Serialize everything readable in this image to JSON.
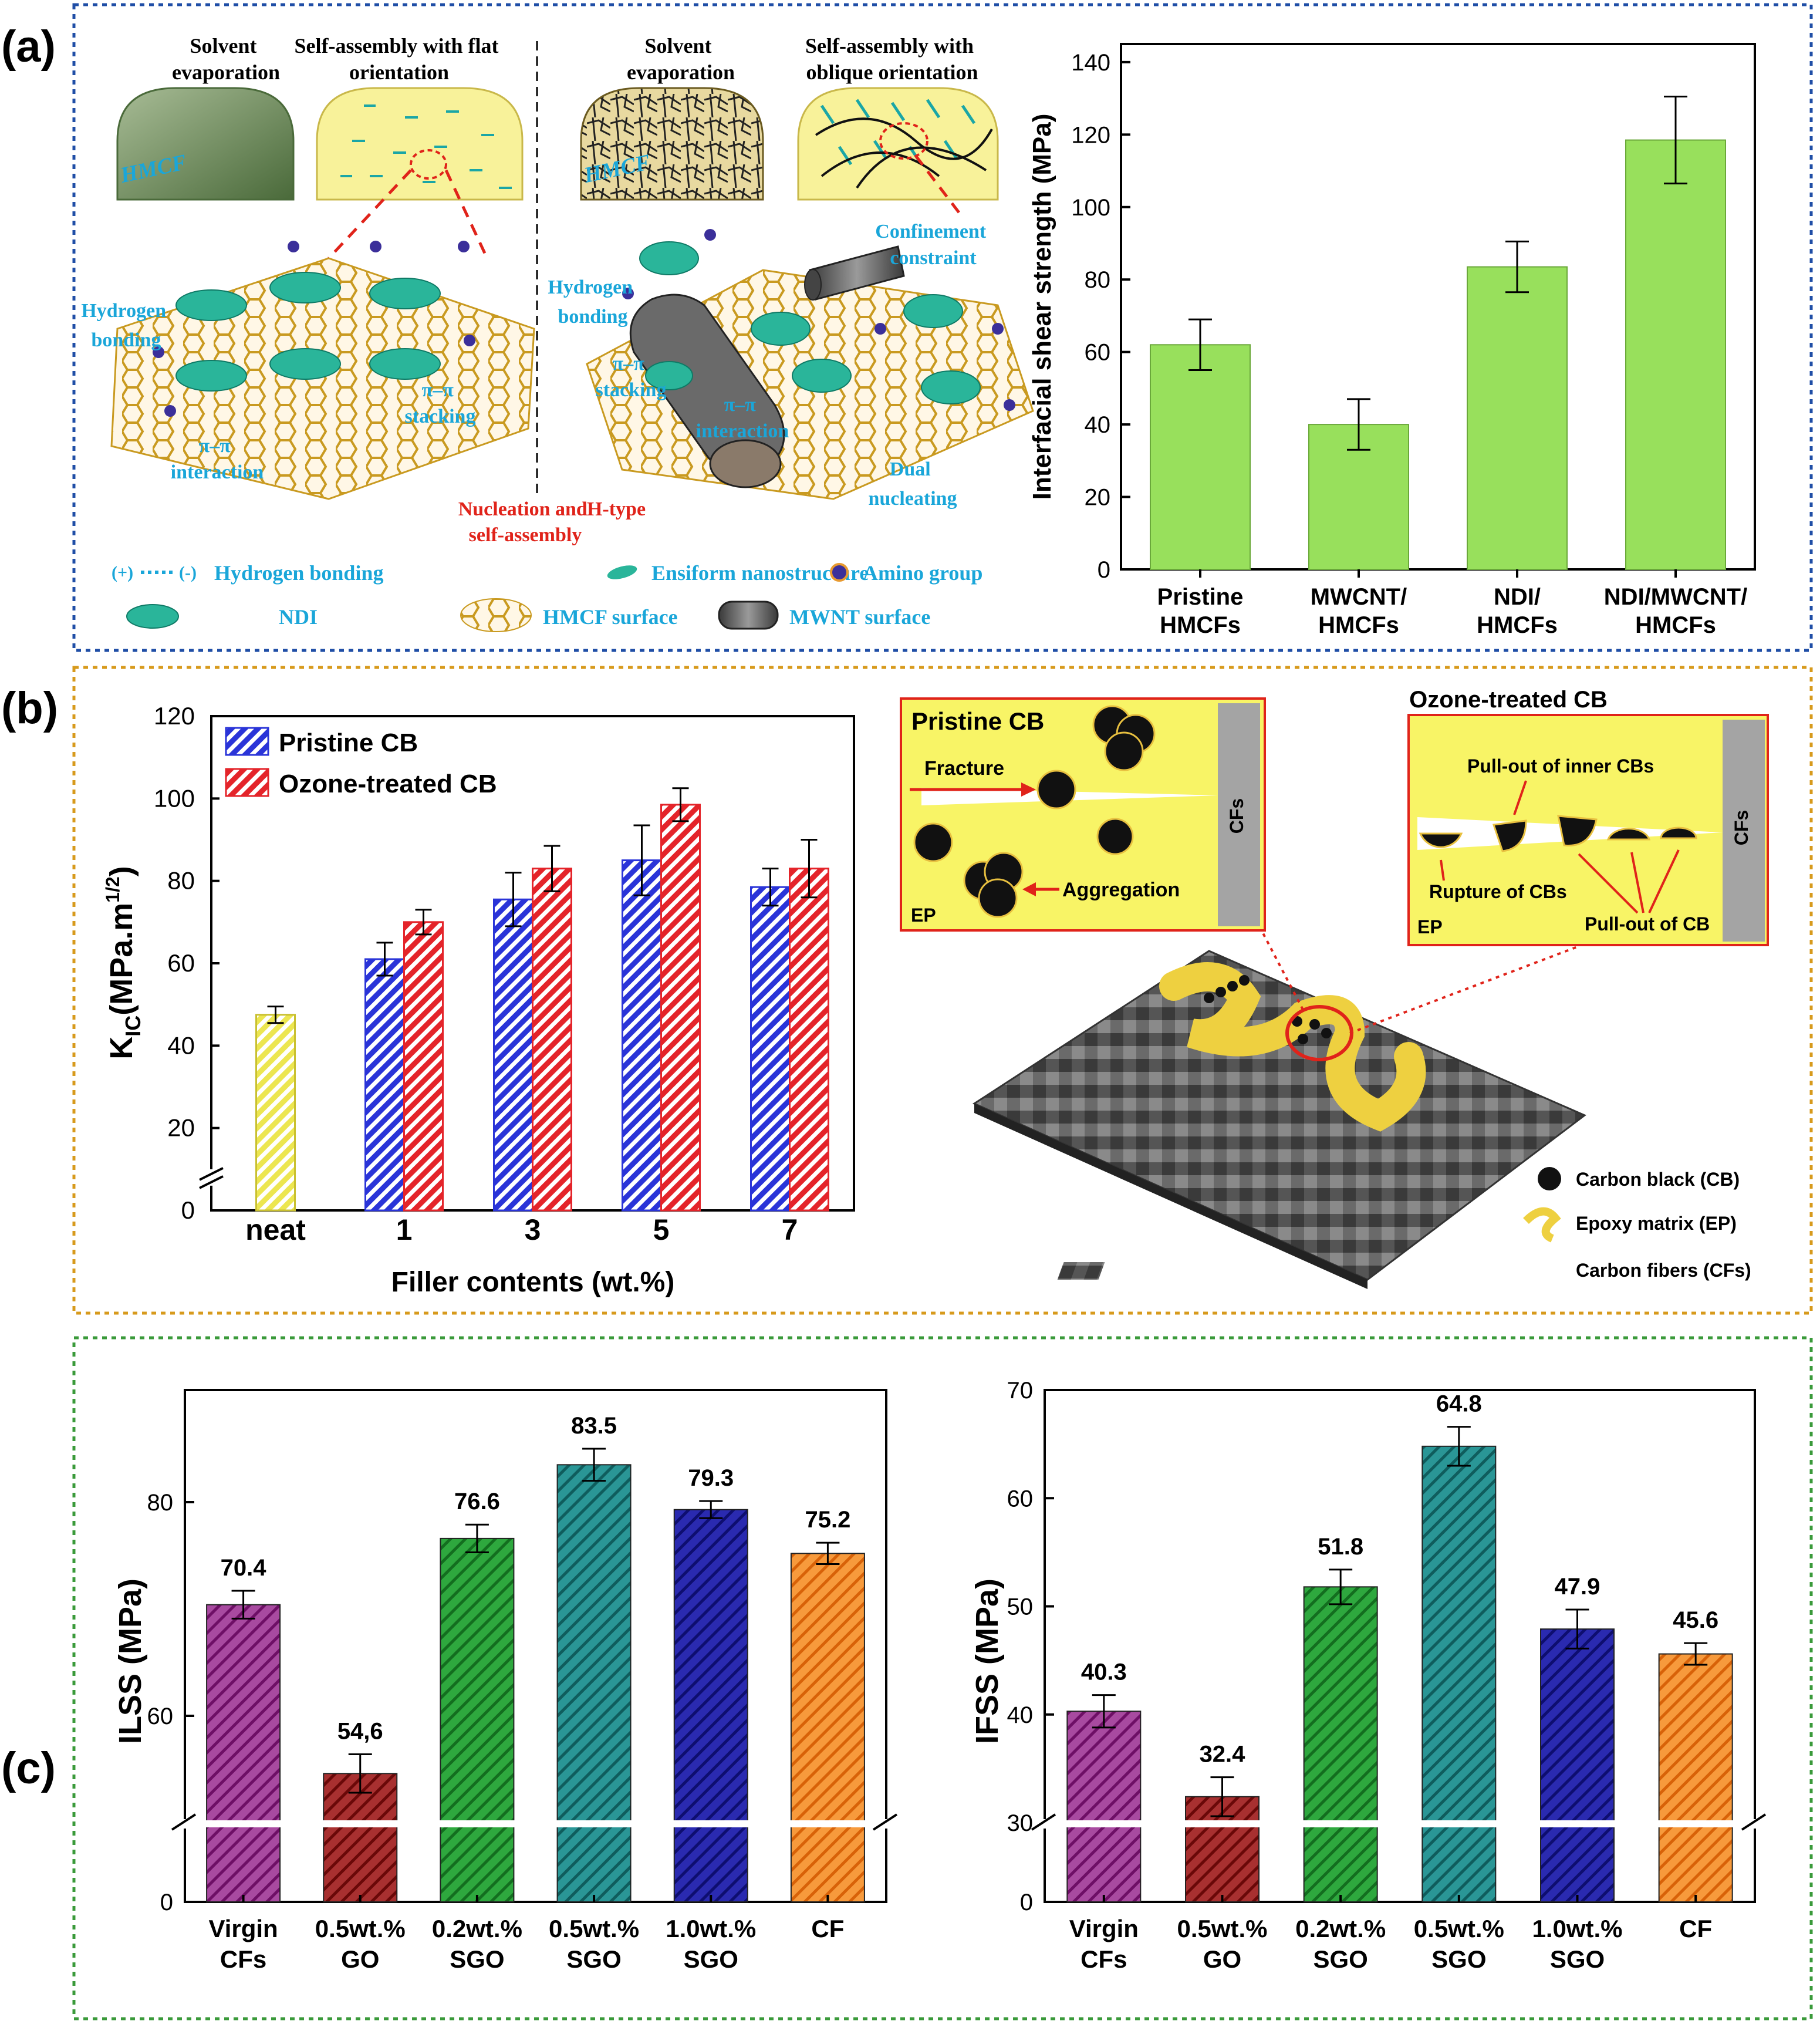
{
  "colors": {
    "panel_a_border": "#1f4ea6",
    "panel_b_border": "#d79a1c",
    "panel_c_border": "#3a9a3a",
    "cyan_label": "#1aa6d9",
    "red_label": "#e0231a",
    "green_bar": "#98e05c",
    "blue_bar": "#2a34d8",
    "red_bar": "#e4242a",
    "yellow_bar": "#f4f06a",
    "purple_bar": "#8b1a82",
    "darkred_bar": "#8c1010",
    "green_c_bar": "#1c8a2c",
    "teal_bar": "#1a7a7a",
    "navy_bar": "#1a1a96",
    "orange_bar": "#f07c10",
    "yellow_bg": "#f8f466"
  },
  "panel_labels": {
    "a": "(a)",
    "b": "(b)",
    "c": "(c)"
  },
  "schematic_a": {
    "solvent_evaporation_1": [
      "Solvent",
      "evaporation"
    ],
    "self_assembly_flat": [
      "Self-assembly with flat",
      "orientation"
    ],
    "solvent_evaporation_2": [
      "Solvent",
      "evaporation"
    ],
    "self_assembly_oblique": [
      "Self-assembly with",
      "oblique orientation"
    ],
    "hmcf_1": "HMCF",
    "hmcf_2": "HMCF",
    "hydrogen_bonding_1": [
      "Hydrogen",
      "bonding"
    ],
    "pi_stacking_1": [
      "π–π",
      "stacking"
    ],
    "pi_interaction_1": [
      "π–π",
      "interaction"
    ],
    "hydrogen_bonding_2": [
      "Hydrogen",
      "bonding"
    ],
    "pi_stacking_2": [
      "π–π",
      "stacking"
    ],
    "pi_interaction_2": [
      "π–π",
      "interaction"
    ],
    "confinement": [
      "Confinement",
      "constraint"
    ],
    "dual_nucleating": [
      "Dual",
      "nucleating"
    ],
    "nucleation": [
      "Nucleation and",
      "self-assembly"
    ],
    "h_type": "H-type",
    "plus": "(+)",
    "minus": "(-)",
    "legend": {
      "hydrogen_bonding": "Hydrogen bonding",
      "ensiform": "Ensiform nanostructure",
      "amino": "Amino group",
      "ndi": "NDI",
      "hmcf_surface": "HMCF surface",
      "mwnt_surface": "MWNT surface"
    }
  },
  "schematic_b": {
    "pristine_title": "Pristine CB",
    "fracture": "Fracture",
    "aggregation": "Aggregation",
    "ep_1": "EP",
    "cfs_1": "CFs",
    "ozone_title": "Ozone-treated CB",
    "pull_out_inner": "Pull-out of inner CBs",
    "rupture": "Rupture of CBs",
    "pull_out_cb": "Pull-out of CB",
    "ep_2": "EP",
    "cfs_2": "CFs",
    "legend": {
      "cb": "Carbon black (CB)",
      "ep": "Epoxy matrix (EP)",
      "cf": "Carbon fibers (CFs)"
    }
  },
  "chart_data": [
    {
      "id": "a",
      "type": "bar",
      "categories": [
        [
          "Pristine",
          "HMCFs"
        ],
        [
          "MWCNT/",
          "HMCFs"
        ],
        [
          "NDI/",
          "HMCFs"
        ],
        [
          "NDI/MWCNT/",
          "HMCFs"
        ]
      ],
      "values": [
        62,
        40,
        83.5,
        118.5
      ],
      "errors": [
        7,
        7,
        7,
        12
      ],
      "ylabel": "Interfacial shear strength (MPa)",
      "ylim": [
        0,
        145
      ],
      "yticks": [
        "0",
        "20",
        "40",
        "60",
        "80",
        "100",
        "120",
        "140"
      ]
    },
    {
      "id": "b",
      "type": "bar",
      "categories": [
        "neat",
        "1",
        "3",
        "5",
        "7"
      ],
      "series": [
        {
          "name": "Pristine CB",
          "values": [
            47.5,
            61,
            75.5,
            85,
            78.5
          ],
          "errors": [
            2,
            4,
            6.5,
            8.5,
            4.5
          ]
        },
        {
          "name": "Ozone-treated CB",
          "values": [
            null,
            70,
            83,
            98.5,
            83
          ],
          "errors": [
            null,
            3,
            5.5,
            4,
            7
          ]
        }
      ],
      "xlabel": "Filler contents (wt.%)",
      "ylabel_main": "K",
      "ylabel_sub": "IC",
      "ylabel_rest": "(MPa.m",
      "ylabel_sup": "1/2",
      "ylabel_end": ")",
      "ylim": [
        0,
        120
      ],
      "axis_break": true,
      "yticks": [
        "0",
        "20",
        "40",
        "60",
        "80",
        "100",
        "120"
      ]
    },
    {
      "id": "c1",
      "type": "bar",
      "categories": [
        [
          "Virgin",
          "CFs"
        ],
        [
          "0.5wt.%",
          "GO"
        ],
        [
          "0.2wt.%",
          "SGO"
        ],
        [
          "0.5wt.%",
          "SGO"
        ],
        [
          "1.0wt.%",
          "SGO"
        ],
        [
          "CF",
          ""
        ]
      ],
      "values": [
        70.4,
        54.6,
        76.6,
        83.5,
        79.3,
        75.2
      ],
      "value_labels": [
        "70.4",
        "54,6",
        "76.6",
        "83.5",
        "79.3",
        "75.2"
      ],
      "errors": [
        1.3,
        1.8,
        1.3,
        1.5,
        0.8,
        1.0
      ],
      "ylabel": "ILSS (MPa)",
      "axis_break": true,
      "yticks": [
        "0",
        "60",
        "80"
      ]
    },
    {
      "id": "c2",
      "type": "bar",
      "categories": [
        [
          "Virgin",
          "CFs"
        ],
        [
          "0.5wt.%",
          "GO"
        ],
        [
          "0.2wt.%",
          "SGO"
        ],
        [
          "0.5wt.%",
          "SGO"
        ],
        [
          "1.0wt.%",
          "SGO"
        ],
        [
          "CF",
          ""
        ]
      ],
      "values": [
        40.3,
        32.4,
        51.8,
        64.8,
        47.9,
        45.6
      ],
      "value_labels": [
        "40.3",
        "32.4",
        "51.8",
        "64.8",
        "47.9",
        "45.6"
      ],
      "errors": [
        1.5,
        1.8,
        1.6,
        1.8,
        1.8,
        1.0
      ],
      "ylabel": "IFSS (MPa)",
      "axis_break": true,
      "yticks": [
        "0",
        "30",
        "40",
        "50",
        "60",
        "70"
      ]
    }
  ]
}
